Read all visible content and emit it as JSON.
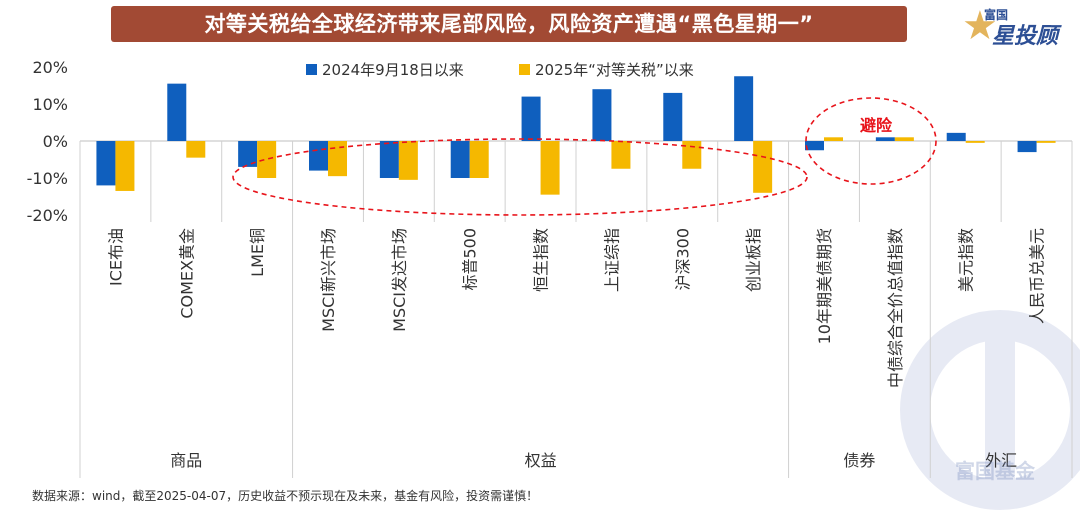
{
  "title": "对等关税给全球经济带来尾部风险，风险资产遭遇“黑色星期一”",
  "logo": {
    "top": "富国",
    "main": "星投顾",
    "star_icon": "star-icon"
  },
  "watermark": "富国基金",
  "source": "数据来源：wind，截至2025-04-07，历史收益不预示现在及未来，基金有风险，投资需谨慎！",
  "annotation": {
    "label": "避险",
    "color": "#e8141b"
  },
  "colors": {
    "series1": "#0f5fbe",
    "series2": "#f5b800",
    "title_bg": "#a24a34",
    "axis_text": "#333333"
  },
  "chart_data": {
    "type": "bar",
    "title": "对等关税给全球经济带来尾部风险，风险资产遭遇“黑色星期一”",
    "xlabel": "",
    "ylabel": "",
    "ylim": [
      -0.2,
      0.2
    ],
    "yticks": [
      0.2,
      0.1,
      0.0,
      -0.1,
      -0.2
    ],
    "ytick_labels": [
      "20%",
      "10%",
      "0%",
      "-10%",
      "-20%"
    ],
    "legend_position": "top",
    "categories": [
      "ICE布油",
      "COMEX黄金",
      "LME铜",
      "MSCI新兴市场",
      "MSCI发达市场",
      "标普500",
      "恒生指数",
      "上证综指",
      "沪深300",
      "创业板指",
      "10年期美债期货",
      "中债综合全价总值指数",
      "美元指数",
      "人民币兑美元"
    ],
    "series": [
      {
        "name": "2024年9月18日以来",
        "values": [
          -0.12,
          0.155,
          -0.07,
          -0.08,
          -0.1,
          -0.1,
          0.12,
          0.14,
          0.13,
          0.175,
          -0.025,
          0.01,
          0.022,
          -0.03
        ]
      },
      {
        "name": "2025年“对等关税”以来",
        "values": [
          -0.135,
          -0.045,
          -0.1,
          -0.095,
          -0.105,
          -0.1,
          -0.145,
          -0.075,
          -0.075,
          -0.14,
          0.01,
          0.01,
          -0.005,
          -0.005
        ]
      }
    ],
    "groups": [
      {
        "name": "商品",
        "count": 3
      },
      {
        "name": "权益",
        "count": 7
      },
      {
        "name": "债券",
        "count": 2
      },
      {
        "name": "外汇",
        "count": 2
      }
    ]
  }
}
